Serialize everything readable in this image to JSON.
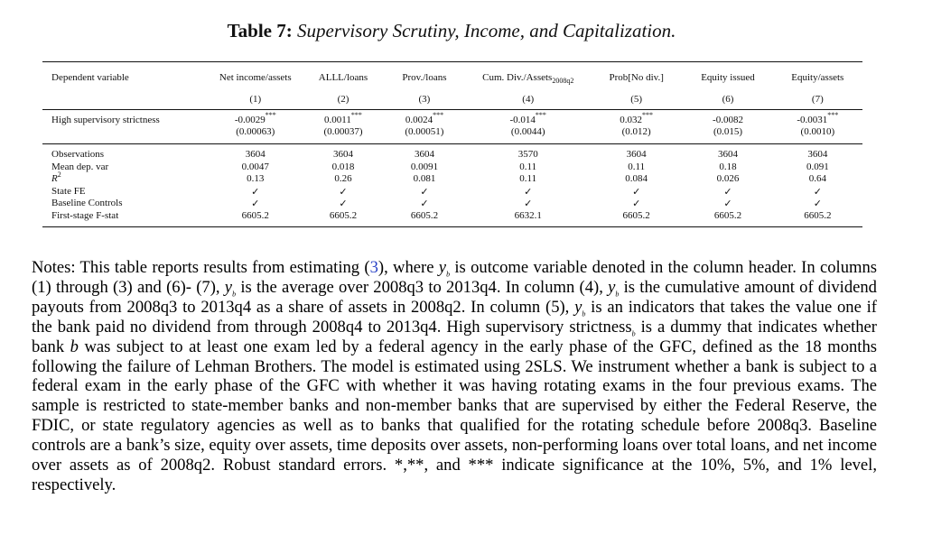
{
  "caption": {
    "label": "Table 7:",
    "text": "Supervisory Scrutiny, Income, and Capitalization."
  },
  "table": {
    "dep_var_label": "Dependent variable",
    "columns": [
      {
        "name": "Net income/assets",
        "num": "(1)"
      },
      {
        "name": "ALLL/loans",
        "num": "(2)"
      },
      {
        "name": "Prov./loans",
        "num": "(3)"
      },
      {
        "name": "Cum. Div./Assets",
        "sub": "2008q2",
        "num": "(4)"
      },
      {
        "name": "Prob[No div.]",
        "num": "(5)"
      },
      {
        "name": "Equity issued",
        "num": "(6)"
      },
      {
        "name": "Equity/assets",
        "num": "(7)"
      }
    ],
    "main_row": {
      "label": "High supervisory strictness",
      "coefs": [
        {
          "v": "-0.0029",
          "stars": "***"
        },
        {
          "v": "0.0011",
          "stars": "***"
        },
        {
          "v": "0.0024",
          "stars": "***"
        },
        {
          "v": "-0.014",
          "stars": "***"
        },
        {
          "v": "0.032",
          "stars": "***"
        },
        {
          "v": "-0.0082",
          "stars": ""
        },
        {
          "v": "-0.0031",
          "stars": "***"
        }
      ],
      "se": [
        "(0.00063)",
        "(0.00037)",
        "(0.00051)",
        "(0.0044)",
        "(0.012)",
        "(0.015)",
        "(0.0010)"
      ]
    },
    "stats": {
      "observations": {
        "label": "Observations",
        "values": [
          "3604",
          "3604",
          "3604",
          "3570",
          "3604",
          "3604",
          "3604"
        ]
      },
      "mean_dep": {
        "label": "Mean dep. var",
        "values": [
          "0.0047",
          "0.018",
          "0.0091",
          "0.11",
          "0.11",
          "0.18",
          "0.091"
        ]
      },
      "r2": {
        "label": "R",
        "label_sup": "2",
        "values": [
          "0.13",
          "0.26",
          "0.081",
          "0.11",
          "0.084",
          "0.026",
          "0.64"
        ]
      },
      "state_fe": {
        "label": "State FE",
        "values": [
          "✓",
          "✓",
          "✓",
          "✓",
          "✓",
          "✓",
          "✓"
        ]
      },
      "baseline": {
        "label": "Baseline Controls",
        "values": [
          "✓",
          "✓",
          "✓",
          "✓",
          "✓",
          "✓",
          "✓"
        ]
      },
      "fstat": {
        "label": "First-stage F-stat",
        "values": [
          "6605.2",
          "6605.2",
          "6605.2",
          "6632.1",
          "6605.2",
          "6605.2",
          "6605.2"
        ]
      }
    }
  },
  "notes": {
    "p1": "Notes: This table reports results from estimating (",
    "eq_ref": "3",
    "p2": "), where ",
    "y": "y",
    "b": "b",
    "p3": " is outcome variable denoted in the column header. In columns (1) through (3) and (6)- (7), ",
    "p4": " is the average over 2008q3 to 2013q4. In column (4), ",
    "p5": " is the cumulative amount of dividend payouts from 2008q3 to 2013q4 as a share of assets in 2008q2. In column (5), ",
    "p6": " is an indicators that takes the value one if the bank paid no dividend from through 2008q4 to 2013q4. High supervisory strictness",
    "p7": " is a dummy that indicates whether bank ",
    "p8": " was subject to at least one exam led by a federal agency in the early phase of the GFC, defined as the 18 months following the failure of Lehman Brothers. The model is estimated using 2SLS. We instrument whether a bank is subject to a federal exam in the early phase of the GFC with whether it was having rotating exams in the four previous exams. The sample is restricted to state-member banks and non-member banks that are supervised by either the Federal Reserve, the FDIC, or state regulatory agencies as well as to banks that qualified for the rotating schedule before 2008q3. Baseline controls are a bank’s size, equity over assets, time deposits over assets, non-performing loans over total loans, and net income over assets as of 2008q2. Robust standard errors. *,**, and *** indicate significance at the 10%, 5%, and 1% level, respectively."
  }
}
